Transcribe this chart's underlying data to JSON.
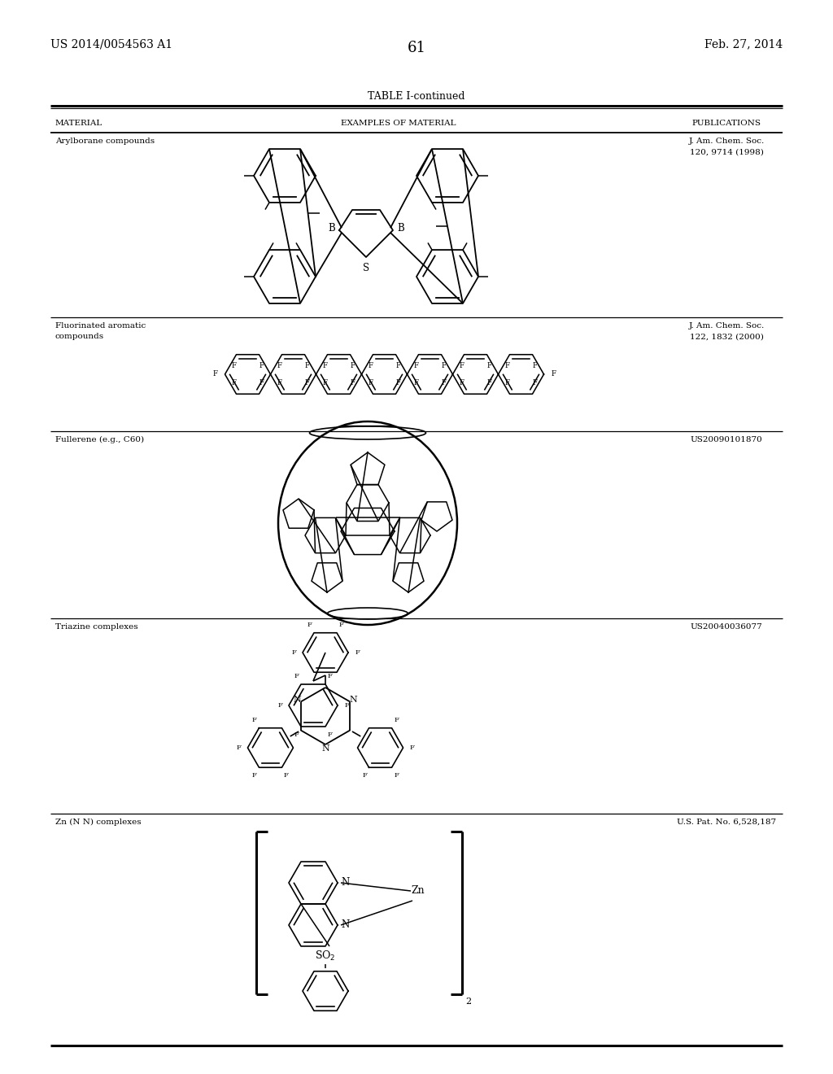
{
  "page_header_left": "US 2014/0054563 A1",
  "page_header_right": "Feb. 27, 2014",
  "page_number": "61",
  "table_title": "TABLE I-continued",
  "col1_header": "MATERIAL",
  "col2_header": "EXAMPLES OF MATERIAL",
  "col3_header": "PUBLICATIONS",
  "rows": [
    {
      "material": "Arylborane compounds",
      "publication": "J. Am. Chem. Soc.\n120, 9714 (1998)"
    },
    {
      "material": "Fluorinated aromatic\ncompounds",
      "publication": "J. Am. Chem. Soc.\n122, 1832 (2000)"
    },
    {
      "material": "Fullerene (e.g., C60)",
      "publication": "US20090101870"
    },
    {
      "material": "Triazine complexes",
      "publication": "US20040036077"
    },
    {
      "material": "Zn (N N) complexes",
      "publication": "U.S. Pat. No. 6,528,187"
    }
  ],
  "bg_color": "#ffffff",
  "text_color": "#000000"
}
